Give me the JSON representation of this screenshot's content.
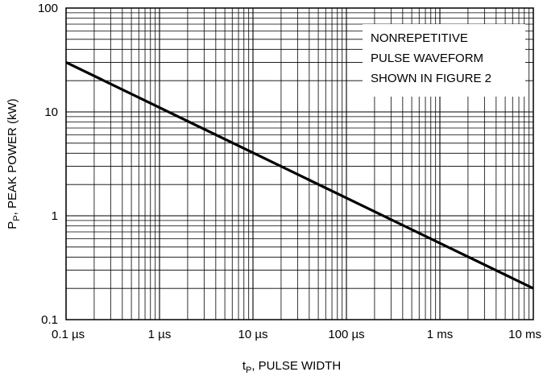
{
  "chart_data": {
    "type": "line",
    "title": "",
    "xlabel": {
      "main": "t",
      "sub": "P",
      "rest": ", PULSE WIDTH"
    },
    "ylabel": {
      "main": "P",
      "sub": "P",
      "rest": ", PEAK POWER (kW)"
    },
    "x_scale": "log",
    "y_scale": "log",
    "x_unit": "µs",
    "xlim": [
      0.1,
      10000
    ],
    "ylim": [
      0.1,
      100
    ],
    "x_ticks": [
      {
        "value": 0.1,
        "label": "0.1 µs"
      },
      {
        "value": 1,
        "label": "1 µs"
      },
      {
        "value": 10,
        "label": "10 µs"
      },
      {
        "value": 100,
        "label": "100 µs"
      },
      {
        "value": 1000,
        "label": "1 ms"
      },
      {
        "value": 10000,
        "label": "10 ms"
      }
    ],
    "y_ticks": [
      {
        "value": 0.1,
        "label": "0.1"
      },
      {
        "value": 1,
        "label": "1"
      },
      {
        "value": 10,
        "label": "10"
      },
      {
        "value": 100,
        "label": "100"
      }
    ],
    "grid": true,
    "series": [
      {
        "x": [
          0.1,
          10000
        ],
        "y": [
          30,
          0.2
        ],
        "color": "#000000"
      }
    ],
    "annotation": {
      "lines": [
        "NONREPETITIVE",
        "PULSE WAVEFORM",
        "SHOWN IN FIGURE 2"
      ],
      "placement": "top-right"
    }
  }
}
